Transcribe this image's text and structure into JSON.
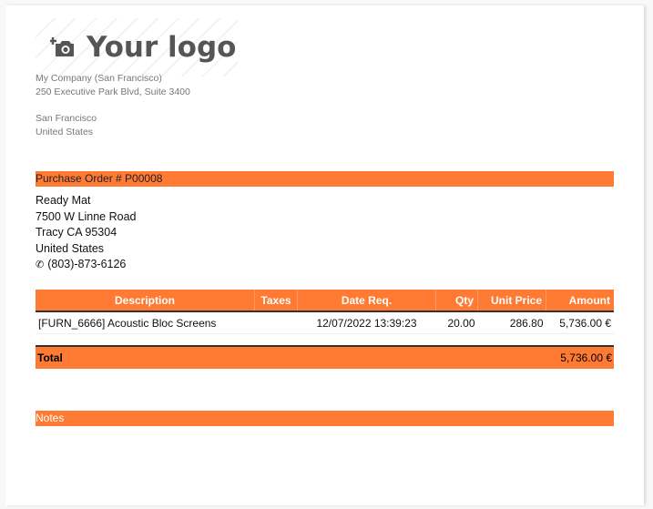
{
  "logo": {
    "text": "Your logo",
    "icon": "add-photo-icon"
  },
  "company": {
    "name": "My Company (San Francisco)",
    "street": "250 Executive Park Blvd, Suite 3400",
    "city": "San Francisco",
    "country": "United States"
  },
  "order": {
    "title": "Purchase Order # P00008"
  },
  "vendor": {
    "name": "Ready Mat",
    "street": "7500 W Linne Road",
    "city": "Tracy CA 95304",
    "country": "United States",
    "phone": "(803)-873-6126",
    "phone_icon": "phone-icon"
  },
  "table": {
    "headers": [
      "Description",
      "Taxes",
      "Date Req.",
      "Qty",
      "Unit Price",
      "Amount"
    ],
    "rows": [
      {
        "description": "[FURN_6666] Acoustic Bloc Screens",
        "taxes": "",
        "date": "12/07/2022 13:39:23",
        "qty": "20.00",
        "unit_price": "286.80",
        "amount": "5,736.00 €"
      }
    ]
  },
  "total": {
    "label": "Total",
    "value": "5,736.00 €"
  },
  "notes": {
    "label": "Notes"
  },
  "colors": {
    "accent": "#ff7a33"
  }
}
